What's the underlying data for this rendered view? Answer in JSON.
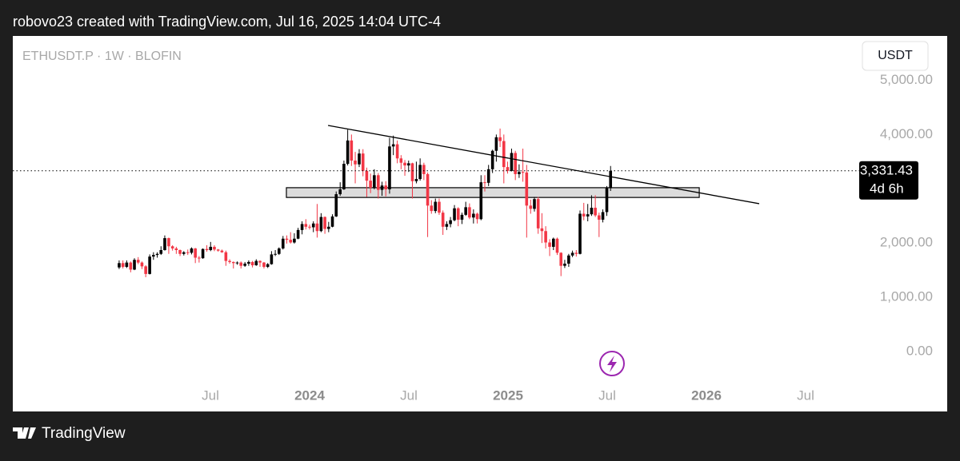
{
  "header": {
    "text": "robovo23 created with TradingView.com, Jul 16, 2025 14:04 UTC-4"
  },
  "chart_data": {
    "type": "candlestick",
    "symbol": "ETHUSDT.P · 1W · BLOFIN",
    "currency": "USDT",
    "up_color": "#000000",
    "down_color": "#f23645",
    "xlim": [
      2022.504,
      2026.754
    ],
    "ylim": [
      -1105,
      5817
    ],
    "xticks": [
      {
        "value": 2023.5,
        "label": "Jul"
      },
      {
        "value": 2024,
        "label": "2024"
      },
      {
        "value": 2024.5,
        "label": "Jul"
      },
      {
        "value": 2025,
        "label": "2025"
      },
      {
        "value": 2025.5,
        "label": "Jul"
      },
      {
        "value": 2026,
        "label": "2026"
      },
      {
        "value": 2026.5,
        "label": "Jul"
      }
    ],
    "yticks": [
      {
        "value": 5000,
        "label": "5,000.00"
      },
      {
        "value": 4000,
        "label": "4,000.00"
      },
      {
        "value": 2000,
        "label": "2,000.00"
      },
      {
        "value": 1000,
        "label": "1,000.00"
      },
      {
        "value": 0,
        "label": "0.00"
      }
    ],
    "last_price": {
      "value": 3331.43,
      "label": "3,331.43"
    },
    "countdown": "4d 6h",
    "zone": {
      "x": [
        2023.883,
        2025.964
      ],
      "y": [
        3020,
        2840
      ]
    },
    "trendline": {
      "x": [
        2024.093,
        2026.266
      ],
      "y": [
        4168,
        2725
      ]
    },
    "x": [
      2023.04,
      2023.059,
      2023.078,
      2023.098,
      2023.117,
      2023.136,
      2023.155,
      2023.174,
      2023.194,
      2023.213,
      2023.232,
      2023.251,
      2023.27,
      2023.29,
      2023.309,
      2023.328,
      2023.347,
      2023.366,
      2023.386,
      2023.405,
      2023.424,
      2023.443,
      2023.462,
      2023.482,
      2023.501,
      2023.52,
      2023.539,
      2023.558,
      2023.578,
      2023.597,
      2023.616,
      2023.635,
      2023.654,
      2023.674,
      2023.693,
      2023.712,
      2023.731,
      2023.75,
      2023.77,
      2023.789,
      2023.808,
      2023.827,
      2023.846,
      2023.866,
      2023.885,
      2023.904,
      2023.923,
      2023.942,
      2023.962,
      2023.981,
      2024.0,
      2024.019,
      2024.038,
      2024.058,
      2024.077,
      2024.096,
      2024.115,
      2024.134,
      2024.154,
      2024.173,
      2024.192,
      2024.211,
      2024.23,
      2024.25,
      2024.269,
      2024.288,
      2024.307,
      2024.326,
      2024.346,
      2024.365,
      2024.384,
      2024.403,
      2024.422,
      2024.442,
      2024.461,
      2024.48,
      2024.499,
      2024.518,
      2024.538,
      2024.557,
      2024.576,
      2024.595,
      2024.614,
      2024.634,
      2024.653,
      2024.672,
      2024.691,
      2024.71,
      2024.73,
      2024.749,
      2024.768,
      2024.787,
      2024.806,
      2024.826,
      2024.845,
      2024.864,
      2024.883,
      2024.902,
      2024.922,
      2024.941,
      2024.96,
      2024.979,
      2024.998,
      2025.018,
      2025.037,
      2025.056,
      2025.075,
      2025.094,
      2025.114,
      2025.133,
      2025.152,
      2025.171,
      2025.19,
      2025.21,
      2025.229,
      2025.248,
      2025.267,
      2025.286,
      2025.306,
      2025.325,
      2025.344,
      2025.363,
      2025.382,
      2025.402,
      2025.421,
      2025.44,
      2025.459,
      2025.478,
      2025.498,
      2025.517
    ],
    "ohlc": [
      [
        1550,
        1680,
        1520,
        1630
      ],
      [
        1630,
        1680,
        1530,
        1560
      ],
      [
        1560,
        1680,
        1540,
        1640
      ],
      [
        1640,
        1660,
        1460,
        1510
      ],
      [
        1510,
        1720,
        1500,
        1690
      ],
      [
        1690,
        1740,
        1610,
        1640
      ],
      [
        1640,
        1660,
        1520,
        1570
      ],
      [
        1570,
        1590,
        1370,
        1430
      ],
      [
        1430,
        1790,
        1420,
        1750
      ],
      [
        1750,
        1830,
        1690,
        1780
      ],
      [
        1780,
        1830,
        1730,
        1800
      ],
      [
        1800,
        1940,
        1780,
        1870
      ],
      [
        1870,
        2140,
        1860,
        2090
      ],
      [
        2090,
        2100,
        1800,
        1940
      ],
      [
        1940,
        1960,
        1860,
        1900
      ],
      [
        1900,
        1930,
        1800,
        1870
      ],
      [
        1870,
        1880,
        1760,
        1800
      ],
      [
        1800,
        1850,
        1770,
        1830
      ],
      [
        1830,
        1880,
        1780,
        1820
      ],
      [
        1820,
        1920,
        1790,
        1900
      ],
      [
        1900,
        1910,
        1630,
        1730
      ],
      [
        1730,
        1760,
        1640,
        1720
      ],
      [
        1720,
        1900,
        1710,
        1890
      ],
      [
        1890,
        1960,
        1840,
        1870
      ],
      [
        1870,
        2020,
        1850,
        1930
      ],
      [
        1930,
        1960,
        1850,
        1880
      ],
      [
        1880,
        1890,
        1840,
        1860
      ],
      [
        1860,
        1880,
        1820,
        1830
      ],
      [
        1830,
        1860,
        1580,
        1670
      ],
      [
        1670,
        1700,
        1620,
        1650
      ],
      [
        1650,
        1660,
        1530,
        1630
      ],
      [
        1630,
        1660,
        1600,
        1640
      ],
      [
        1640,
        1660,
        1530,
        1580
      ],
      [
        1580,
        1650,
        1560,
        1620
      ],
      [
        1620,
        1680,
        1580,
        1650
      ],
      [
        1650,
        1670,
        1550,
        1590
      ],
      [
        1590,
        1700,
        1580,
        1670
      ],
      [
        1670,
        1680,
        1560,
        1640
      ],
      [
        1640,
        1650,
        1530,
        1560
      ],
      [
        1560,
        1630,
        1540,
        1610
      ],
      [
        1610,
        1850,
        1600,
        1790
      ],
      [
        1790,
        1870,
        1760,
        1800
      ],
      [
        1800,
        1920,
        1780,
        1900
      ],
      [
        1900,
        2130,
        1880,
        2080
      ],
      [
        2080,
        2140,
        1990,
        2060
      ],
      [
        2060,
        2200,
        1990,
        2010
      ],
      [
        2010,
        2180,
        1990,
        2080
      ],
      [
        2080,
        2280,
        2070,
        2240
      ],
      [
        2240,
        2400,
        2160,
        2350
      ],
      [
        2350,
        2440,
        2250,
        2300
      ],
      [
        2300,
        2340,
        2250,
        2290
      ],
      [
        2290,
        2400,
        2200,
        2360
      ],
      [
        2360,
        2720,
        2100,
        2220
      ],
      [
        2220,
        2550,
        2200,
        2480
      ],
      [
        2480,
        2490,
        2170,
        2260
      ],
      [
        2260,
        2390,
        2200,
        2300
      ],
      [
        2300,
        2530,
        2290,
        2490
      ],
      [
        2490,
        2950,
        2480,
        2900
      ],
      [
        2900,
        3120,
        2870,
        2990
      ],
      [
        2990,
        3520,
        2980,
        3460
      ],
      [
        3460,
        4090,
        3430,
        3890
      ],
      [
        3890,
        4000,
        3420,
        3520
      ],
      [
        3520,
        3680,
        3100,
        3450
      ],
      [
        3450,
        3730,
        3400,
        3650
      ],
      [
        3650,
        3730,
        3230,
        3330
      ],
      [
        3330,
        3390,
        2850,
        3150
      ],
      [
        3150,
        3280,
        2920,
        3020
      ],
      [
        3020,
        3360,
        2990,
        3250
      ],
      [
        3250,
        3290,
        2820,
        2980
      ],
      [
        2980,
        3130,
        2870,
        3060
      ],
      [
        3060,
        3140,
        2860,
        2990
      ],
      [
        2990,
        3940,
        2910,
        3780
      ],
      [
        3780,
        3980,
        3620,
        3820
      ],
      [
        3820,
        3890,
        3470,
        3560
      ],
      [
        3560,
        3620,
        3360,
        3480
      ],
      [
        3480,
        3530,
        3240,
        3430
      ],
      [
        3430,
        3520,
        3310,
        3470
      ],
      [
        3470,
        3480,
        2820,
        3140
      ],
      [
        3140,
        3500,
        3100,
        3180
      ],
      [
        3180,
        3560,
        3150,
        3440
      ],
      [
        3440,
        3480,
        3160,
        3270
      ],
      [
        3270,
        3300,
        2110,
        2690
      ],
      [
        2690,
        2790,
        2540,
        2590
      ],
      [
        2590,
        2820,
        2550,
        2760
      ],
      [
        2760,
        2820,
        2520,
        2560
      ],
      [
        2560,
        2600,
        2150,
        2300
      ],
      [
        2300,
        2400,
        2240,
        2350
      ],
      [
        2350,
        2480,
        2290,
        2420
      ],
      [
        2420,
        2700,
        2400,
        2640
      ],
      [
        2640,
        2660,
        2310,
        2430
      ],
      [
        2430,
        2560,
        2350,
        2520
      ],
      [
        2520,
        2760,
        2500,
        2660
      ],
      [
        2660,
        2730,
        2440,
        2470
      ],
      [
        2470,
        2620,
        2360,
        2540
      ],
      [
        2540,
        2560,
        2360,
        2440
      ],
      [
        2440,
        3250,
        2420,
        3120
      ],
      [
        3120,
        3250,
        2950,
        3110
      ],
      [
        3110,
        3440,
        3050,
        3360
      ],
      [
        3360,
        3720,
        3290,
        3700
      ],
      [
        3700,
        4000,
        3500,
        3950
      ],
      [
        3950,
        4110,
        3770,
        3880
      ],
      [
        3880,
        4000,
        3100,
        3400
      ],
      [
        3400,
        3500,
        3280,
        3330
      ],
      [
        3330,
        3740,
        3320,
        3660
      ],
      [
        3660,
        3700,
        3160,
        3270
      ],
      [
        3270,
        3450,
        3200,
        3310
      ],
      [
        3310,
        3740,
        3130,
        3300
      ],
      [
        3300,
        3440,
        2100,
        2690
      ],
      [
        2690,
        2800,
        2540,
        2630
      ],
      [
        2630,
        2850,
        2580,
        2810
      ],
      [
        2810,
        2850,
        2170,
        2270
      ],
      [
        2270,
        2550,
        2000,
        2220
      ],
      [
        2220,
        2310,
        1900,
        2010
      ],
      [
        2010,
        2070,
        1760,
        1930
      ],
      [
        1930,
        2100,
        1870,
        2080
      ],
      [
        2080,
        2100,
        1780,
        1820
      ],
      [
        1820,
        1830,
        1390,
        1580
      ],
      [
        1580,
        1690,
        1540,
        1620
      ],
      [
        1620,
        1800,
        1560,
        1770
      ],
      [
        1770,
        1860,
        1740,
        1820
      ],
      [
        1820,
        1870,
        1750,
        1800
      ],
      [
        1800,
        2600,
        1790,
        2540
      ],
      [
        2540,
        2740,
        2420,
        2490
      ],
      [
        2490,
        2720,
        2400,
        2530
      ],
      [
        2530,
        2880,
        2500,
        2650
      ],
      [
        2650,
        2880,
        2480,
        2510
      ],
      [
        2510,
        2560,
        2110,
        2430
      ],
      [
        2430,
        2620,
        2380,
        2570
      ],
      [
        2570,
        3050,
        2500,
        3010
      ],
      [
        3010,
        3420,
        2960,
        3331.43
      ]
    ]
  },
  "footer": {
    "brand": "TradingView"
  }
}
